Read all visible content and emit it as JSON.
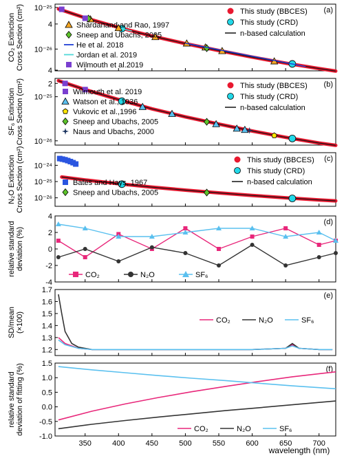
{
  "figure": {
    "xlabel": "wavelength (nm)",
    "x_ticks": [
      "350",
      "400",
      "450",
      "500",
      "550",
      "600",
      "650",
      "700"
    ]
  },
  "chart_data": [
    {
      "panel": "(a)",
      "type": "scatter",
      "ylabel_line1": "CO₂ Extinction",
      "ylabel_line2": "Cross Section (cm²)",
      "yscale": "log",
      "ylim": [
        3e-27,
        1.2e-25
      ],
      "y_ticks": [
        "10⁻²⁵",
        "4",
        "2",
        "10⁻²⁶",
        "4"
      ],
      "legend_right": [
        "This study (BBCES)",
        "This study (CRD)",
        "n-based calculation"
      ],
      "legend_left": [
        "Shardanand and Rao, 1997",
        "Sneep and Ubachs, 2005",
        "He et al. 2018",
        "Jordan et al. 2019",
        "Wilmouth et al.2019"
      ],
      "series": [
        {
          "name": "This study (BBCES)",
          "x": [
            310,
            350,
            400,
            450,
            500,
            550,
            600,
            650,
            700,
            725
          ],
          "y": [
            9.2e-26,
            5.6e-26,
            3.3e-26,
            2.05e-26,
            1.35e-26,
            9.2e-27,
            6.4e-27,
            4.6e-27,
            3.4e-27,
            2.95e-27
          ]
        },
        {
          "name": "This study (CRD)",
          "x": [
            405,
            660
          ],
          "y": [
            3.1e-26,
            4.4e-27
          ]
        },
        {
          "name": "Shardanand and Rao, 1997",
          "x": [
            358,
            400,
            455,
            502,
            530,
            555,
            633
          ],
          "y": [
            5.2e-26,
            3.2e-26,
            1.95e-26,
            1.37e-26,
            1.1e-26,
            9e-27,
            5.1e-27
          ]
        },
        {
          "name": "Sneep and Ubachs, 2005",
          "x": [
            355,
            532
          ],
          "y": [
            5.4e-26,
            1.05e-26
          ]
        },
        {
          "name": "He et al. 2018",
          "x": [
            500,
            680
          ],
          "y": [
            1.38e-26,
            3.8e-27
          ]
        },
        {
          "name": "Jordan et al. 2019",
          "x": [
            405,
            420
          ],
          "y": [
            3.1e-26,
            2.7e-26
          ]
        },
        {
          "name": "Wilmouth et al.2019",
          "x": [
            315,
            350
          ],
          "y": [
            9e-26,
            5.5e-26
          ]
        }
      ]
    },
    {
      "panel": "(b)",
      "type": "scatter",
      "ylabel_line1": "SF₆ Extinction",
      "ylabel_line2": "Cross Section (cm²)",
      "yscale": "log",
      "ylim": [
        8e-27,
        2.6e-25
      ],
      "y_ticks": [
        "10⁻²⁵",
        "4",
        "2",
        "10⁻²⁶"
      ],
      "legend_right": [
        "This study (BBCES)",
        "This study (CRD)",
        "n-based calculation"
      ],
      "legend_left": [
        "Wilmouth et al. 2019",
        "Watson et al., 1936",
        "Vukovic et al.,1996",
        "Sneep and Ubachs, 2005",
        "Naus and Ubachs, 2000"
      ],
      "series": [
        {
          "name": "This study (BBCES)",
          "x": [
            310,
            350,
            400,
            450,
            500,
            550,
            600,
            650,
            700,
            725
          ],
          "y": [
            2.3e-25,
            1.45e-25,
            8.6e-26,
            5.3e-26,
            3.5e-26,
            2.4e-26,
            1.67e-26,
            1.2e-26,
            8.9e-27,
            7.9e-27
          ]
        },
        {
          "name": "This study (CRD)",
          "x": [
            405,
            660
          ],
          "y": [
            7.9e-26,
            1.13e-26
          ]
        },
        {
          "name": "Watson et al., 1936",
          "x": [
            436,
            480,
            546,
            577,
            589
          ],
          "y": [
            5.9e-26,
            4.1e-26,
            2.4e-26,
            1.9e-26,
            1.78e-26
          ]
        },
        {
          "name": "Vukovic et al.,1996",
          "x": [
            633
          ],
          "y": [
            1.32e-26
          ]
        },
        {
          "name": "Sneep and Ubachs, 2005",
          "x": [
            532
          ],
          "y": [
            2.7e-26
          ]
        },
        {
          "name": "Naus and Ubachs, 2000",
          "x": [
            596
          ],
          "y": [
            1.72e-26
          ]
        },
        {
          "name": "Wilmouth et al. 2019",
          "x": [
            320,
            350
          ],
          "y": [
            2e-25,
            1.45e-25
          ]
        }
      ]
    },
    {
      "panel": "(c)",
      "type": "scatter",
      "ylabel_line1": "N₂O Extinction",
      "ylabel_line2": "Cross Section (cm²)",
      "yscale": "log",
      "ylim": [
        3e-27,
        6e-24
      ],
      "y_ticks": [
        "10⁻²⁴",
        "10⁻²⁵",
        "10⁻²⁶"
      ],
      "legend_right": [
        "This study (BBCES)",
        "This study (CRD)",
        "n-based calculation"
      ],
      "legend_left": [
        "Bates and Hays, 1967",
        "Sneep and Ubachs, 2005"
      ],
      "series": [
        {
          "name": "This study (BBCES)",
          "x": [
            315,
            350,
            400,
            450,
            500,
            550,
            600,
            650,
            700,
            725
          ],
          "y": [
            1.9e-25,
            1.25e-25,
            7.3e-26,
            4.55e-26,
            2.95e-26,
            2e-26,
            1.4e-26,
            1e-26,
            7.4e-27,
            6.5e-27
          ]
        },
        {
          "name": "This study (CRD)",
          "x": [
            405,
            660
          ],
          "y": [
            6.9e-26,
            9.2e-27
          ]
        },
        {
          "name": "Bates and Hays, 1967",
          "x": [
            312,
            316,
            320,
            324,
            328,
            332,
            336
          ],
          "y": [
            2.6e-24,
            2.4e-24,
            2.2e-24,
            1.95e-24,
            1.7e-24,
            1.45e-24,
            1.2e-24
          ]
        },
        {
          "name": "Sneep and Ubachs, 2005",
          "x": [
            532
          ],
          "y": [
            2.1e-26
          ]
        }
      ]
    },
    {
      "panel": "(d)",
      "type": "line",
      "ylabel_line1": "relative standard",
      "ylabel_line2": "deviation (%)",
      "ylim": [
        -4,
        4
      ],
      "y_ticks": [
        "4",
        "2",
        "0",
        "-2",
        "-4"
      ],
      "series": [
        {
          "name": "CO₂",
          "x": [
            310,
            350,
            400,
            450,
            500,
            550,
            600,
            650,
            700,
            725
          ],
          "y": [
            1.0,
            -1.0,
            1.8,
            0.0,
            2.5,
            0.0,
            1.5,
            2.5,
            0.5,
            1.0
          ]
        },
        {
          "name": "N₂O",
          "x": [
            310,
            350,
            400,
            450,
            500,
            550,
            600,
            650,
            700,
            725
          ],
          "y": [
            -1.0,
            0.0,
            -1.5,
            0.2,
            -0.5,
            -2.0,
            0.5,
            -2.0,
            -1.0,
            -0.5
          ]
        },
        {
          "name": "SF₆",
          "x": [
            310,
            350,
            400,
            450,
            500,
            550,
            600,
            650,
            700,
            725
          ],
          "y": [
            3.0,
            2.5,
            1.5,
            1.5,
            2.0,
            2.5,
            2.5,
            1.5,
            2.0,
            1.0
          ]
        }
      ]
    },
    {
      "panel": "(e)",
      "type": "line",
      "ylabel_line1": "SD/mean",
      "ylabel_line2": "(×100)",
      "ylim": [
        1.15,
        1.7
      ],
      "y_ticks": [
        "1.7",
        "1.6",
        "1.5",
        "1.4",
        "1.3",
        "1.2"
      ],
      "series": [
        {
          "name": "CO₂",
          "x": [
            310,
            320,
            340,
            360,
            400,
            500,
            600,
            650,
            660,
            670,
            700,
            720
          ],
          "y": [
            1.3,
            1.25,
            1.21,
            1.2,
            1.2,
            1.2,
            1.2,
            1.21,
            1.24,
            1.21,
            1.2,
            1.2
          ]
        },
        {
          "name": "N₂O",
          "x": [
            310,
            315,
            320,
            330,
            340,
            350,
            360,
            400,
            500,
            600,
            650,
            660,
            670,
            700,
            720
          ],
          "y": [
            1.66,
            1.5,
            1.35,
            1.25,
            1.22,
            1.21,
            1.2,
            1.2,
            1.2,
            1.2,
            1.21,
            1.25,
            1.21,
            1.2,
            1.2
          ]
        },
        {
          "name": "SF₆",
          "x": [
            310,
            320,
            340,
            360,
            400,
            500,
            600,
            650,
            660,
            670,
            700,
            720
          ],
          "y": [
            1.28,
            1.24,
            1.21,
            1.2,
            1.2,
            1.2,
            1.2,
            1.21,
            1.23,
            1.21,
            1.2,
            1.2
          ]
        }
      ]
    },
    {
      "panel": "(f)",
      "type": "line",
      "ylabel_line1": "relative standard",
      "ylabel_line2": "deviation of fitting (%)",
      "ylim": [
        -1.0,
        1.5
      ],
      "y_ticks": [
        "1.5",
        "1.0",
        "0.5",
        "0.0",
        "-0.5",
        "-1.0"
      ],
      "series": [
        {
          "name": "CO₂",
          "x": [
            310,
            360,
            410,
            460,
            510,
            560,
            610,
            660,
            725
          ],
          "y": [
            -0.45,
            -0.15,
            0.1,
            0.32,
            0.52,
            0.7,
            0.87,
            1.03,
            1.2
          ]
        },
        {
          "name": "N₂O",
          "x": [
            310,
            360,
            410,
            460,
            510,
            560,
            610,
            660,
            725
          ],
          "y": [
            -0.75,
            -0.6,
            -0.47,
            -0.35,
            -0.24,
            -0.13,
            -0.03,
            0.07,
            0.2
          ]
        },
        {
          "name": "SF₆",
          "x": [
            310,
            360,
            410,
            460,
            510,
            560,
            610,
            660,
            725
          ],
          "y": [
            1.38,
            1.27,
            1.17,
            1.07,
            0.98,
            0.9,
            0.81,
            0.72,
            0.62
          ]
        }
      ]
    }
  ],
  "colors": {
    "bbces": "#e8182f",
    "crd": "#22d8e8",
    "nbased": "#111111",
    "shardanand": "#f5a623",
    "sneep": "#5cc32a",
    "he": "#1f3fd6",
    "jordan": "#50d8d8",
    "wilmouth": "#7a3fd0",
    "watson": "#5bc0ef",
    "vukovic": "#ffe600",
    "naus": "#1c3560",
    "bates": "#2a55e0",
    "co2": "#e8277a",
    "n2o": "#333333",
    "sf6": "#5ac0ef"
  }
}
